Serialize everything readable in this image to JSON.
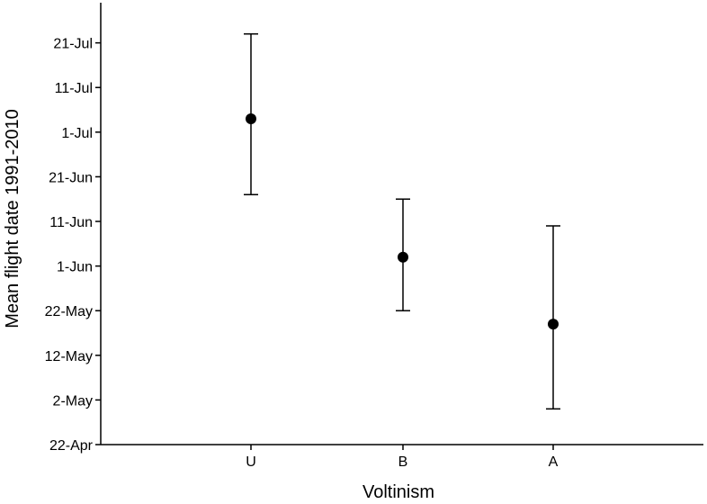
{
  "chart_data": {
    "type": "scatter",
    "title": "",
    "xlabel": "Voltinism",
    "ylabel": "Mean flight date 1991-2010",
    "categories": [
      "U",
      "B",
      "A"
    ],
    "y_tick_labels": [
      "22-Apr",
      "2-May",
      "12-May",
      "22-May",
      "1-Jun",
      "11-Jun",
      "21-Jun",
      "1-Jul",
      "11-Jul",
      "21-Jul"
    ],
    "ylim": [
      "22-Apr",
      "30-Jul"
    ],
    "grid": false,
    "series": [
      {
        "points": [
          {
            "x": "U",
            "y": "4-Jul",
            "lower": "17-Jun",
            "upper": "23-Jul"
          },
          {
            "x": "B",
            "y": "3-Jun",
            "lower": "22-May",
            "upper": "16-Jun"
          },
          {
            "x": "A",
            "y": "19-May",
            "lower": "30-Apr",
            "upper": "10-Jun"
          }
        ]
      }
    ]
  }
}
